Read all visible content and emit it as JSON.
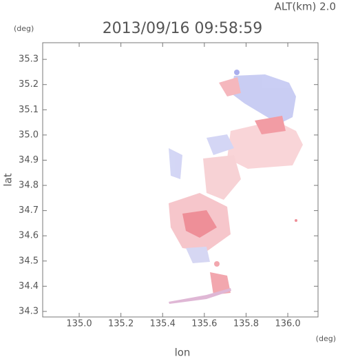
{
  "chart_data": {
    "type": "scatter",
    "title": "2013/09/16 09:58:59",
    "annotation": "ALT(km) 2.0",
    "y_unit": "(deg)",
    "x_unit": "(deg)",
    "xlabel": "lon",
    "ylabel": "lat",
    "xlim": [
      134.825,
      136.145
    ],
    "ylim": [
      34.278,
      35.366
    ],
    "xticks": [
      {
        "value": 135,
        "label": "135.0"
      },
      135.2,
      135.4,
      135.6,
      135.8,
      {
        "value": 136,
        "label": "136.0"
      }
    ],
    "yticks": [
      34.3,
      34.4,
      34.5,
      34.6,
      34.7,
      34.8,
      34.9,
      {
        "value": 35,
        "label": "35.0"
      },
      35.1,
      35.2,
      35.3
    ]
  }
}
